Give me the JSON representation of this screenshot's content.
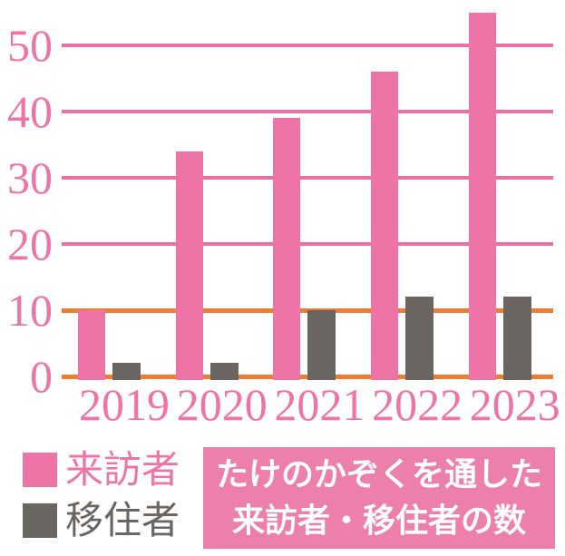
{
  "chart_data": {
    "type": "bar",
    "title": "たけのかぞくを通した来訪者・移住者の数",
    "categories": [
      "2019",
      "2020",
      "2021",
      "2022",
      "2023"
    ],
    "series": [
      {
        "key": "visitors",
        "name": "来訪者",
        "color": "#ee74a8",
        "values": [
          10,
          34,
          39,
          46,
          55
        ]
      },
      {
        "key": "migrants",
        "name": "移住者",
        "color": "#6a6561",
        "values": [
          2,
          2,
          10,
          12,
          12
        ]
      }
    ],
    "y_ticks": [
      0,
      10,
      20,
      30,
      40,
      50
    ],
    "ylim": [
      0,
      56
    ],
    "xlabel": "",
    "ylabel": "",
    "grid": true,
    "gridline_color": "#ee6fa4",
    "highlight_line_color": "#ee7c31",
    "highlight_line_values": [
      0,
      10
    ],
    "axis_label_color": "#ee74a8",
    "legend_position": "bottom-left"
  },
  "legend": {
    "items": [
      {
        "key": "visitors",
        "label": "来訪者",
        "color": "#ee74a8"
      },
      {
        "key": "migrants",
        "label": "移住者",
        "color": "#6a6561"
      }
    ]
  },
  "title_box": {
    "lines": [
      "たけのかぞくを通した",
      "来訪者・移住者の数"
    ],
    "bg_color": "#ec7fab",
    "text_color": "#ffffff"
  }
}
